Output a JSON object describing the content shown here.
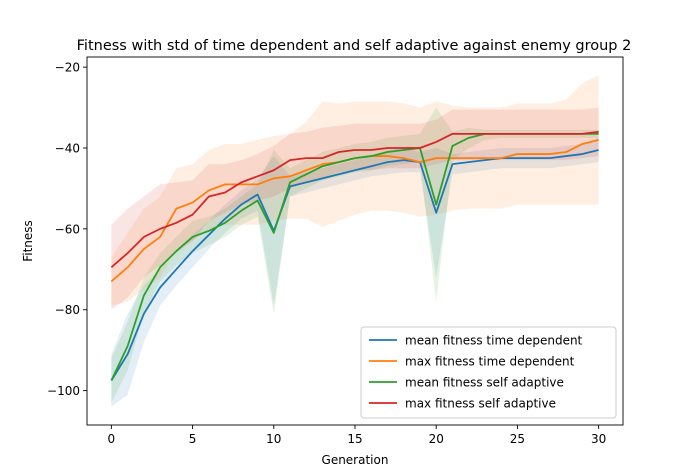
{
  "chart_data": {
    "type": "line",
    "title": "Fitness with std of time dependent and self adaptive against enemy group 2",
    "xlabel": "Generation",
    "ylabel": "Fitness",
    "xlim": [
      -1.5,
      31.5
    ],
    "ylim": [
      -108.5,
      -17.5
    ],
    "xticks": [
      0,
      5,
      10,
      15,
      20,
      25,
      30
    ],
    "yticks": [
      -100,
      -80,
      -60,
      -40,
      -20
    ],
    "x": [
      0,
      1,
      2,
      3,
      4,
      5,
      6,
      7,
      8,
      9,
      10,
      11,
      12,
      13,
      14,
      15,
      16,
      17,
      18,
      19,
      20,
      21,
      22,
      23,
      24,
      25,
      26,
      27,
      28,
      29,
      30
    ],
    "legend_position": "lower right",
    "series": [
      {
        "name": "mean fitness time dependent",
        "color": "#1f77b4",
        "values": [
          -97.5,
          -91,
          -81,
          -74.5,
          -70,
          -65.5,
          -61.5,
          -57.5,
          -54,
          -51.5,
          -60.5,
          -49.5,
          -48.5,
          -47.5,
          -46.5,
          -45.5,
          -44.5,
          -43.5,
          -43,
          -43.5,
          -56,
          -44,
          -43.5,
          -43,
          -42.5,
          -42.5,
          -42.5,
          -42.5,
          -42,
          -41.5,
          -40.5
        ],
        "std_low": [
          -104,
          -101,
          -88,
          -79,
          -74,
          -69.5,
          -65,
          -61,
          -57.5,
          -55.5,
          -79,
          -52,
          -51,
          -50,
          -49,
          -48,
          -47,
          -46.5,
          -46,
          -46,
          -72,
          -46.5,
          -46,
          -45.5,
          -45,
          -45,
          -45,
          -45,
          -44.5,
          -44,
          -43.5
        ],
        "std_high": [
          -91,
          -81,
          -74,
          -70,
          -66,
          -61.5,
          -58,
          -54,
          -50.5,
          -47.5,
          -42,
          -47,
          -46,
          -45,
          -44,
          -43,
          -42,
          -40.5,
          -40,
          -41,
          -40,
          -41.5,
          -41,
          -40.5,
          -40,
          -40,
          -40,
          -40,
          -39.5,
          -39,
          -37.5
        ]
      },
      {
        "name": "max fitness time dependent",
        "color": "#ff7f0e",
        "values": [
          -73,
          -69.5,
          -65,
          -62,
          -55,
          -53.5,
          -50.5,
          -49,
          -49,
          -49,
          -47.5,
          -47,
          -45.5,
          -44,
          -43.5,
          -42.5,
          -42,
          -42,
          -42.5,
          -43.5,
          -42.5,
          -42.5,
          -42.5,
          -42.5,
          -42.5,
          -41.5,
          -41.5,
          -41.5,
          -41,
          -39,
          -38
        ],
        "std_low": [
          -79,
          -78,
          -75,
          -72,
          -65,
          -63,
          -60,
          -59,
          -59,
          -59,
          -58,
          -57.5,
          -57.5,
          -59.5,
          -58,
          -56.5,
          -55.5,
          -55.5,
          -56,
          -57,
          -56.5,
          -55.5,
          -55,
          -55,
          -55,
          -54,
          -54,
          -54,
          -54,
          -54,
          -54
        ],
        "std_high": [
          -67,
          -61,
          -55,
          -52,
          -45,
          -44,
          -40.5,
          -39,
          -39,
          -38,
          -37,
          -36.5,
          -33.5,
          -28.5,
          -29,
          -28.5,
          -28.5,
          -28.5,
          -29,
          -30,
          -28.5,
          -29.5,
          -30,
          -30,
          -30,
          -29,
          -29,
          -29,
          -28,
          -24,
          -22
        ]
      },
      {
        "name": "mean fitness self adaptive",
        "color": "#2ca02c",
        "values": [
          -97.5,
          -89,
          -76.5,
          -69.5,
          -65.5,
          -62,
          -60.5,
          -58.5,
          -55.5,
          -53,
          -61,
          -48.5,
          -46.5,
          -44.5,
          -43.5,
          -42.5,
          -42,
          -41,
          -40.5,
          -40,
          -54,
          -39.5,
          -37.5,
          -36.5,
          -36.5,
          -36.5,
          -36.5,
          -36.5,
          -36.5,
          -36.5,
          -36.5
        ],
        "std_low": [
          -103,
          -95,
          -81,
          -73,
          -69,
          -66,
          -64,
          -62,
          -59,
          -57,
          -81,
          -52,
          -50,
          -48,
          -47,
          -46,
          -45.5,
          -44.5,
          -44,
          -43.5,
          -78,
          -43,
          -40,
          -38,
          -37.5,
          -37.5,
          -37.5,
          -37.5,
          -37.5,
          -37.5,
          -37.5
        ],
        "std_high": [
          -92,
          -83,
          -72,
          -66,
          -62,
          -58,
          -57,
          -55,
          -52,
          -49,
          -40.5,
          -45,
          -43,
          -41,
          -40,
          -39,
          -38.5,
          -37.5,
          -37,
          -36.5,
          -30,
          -36,
          -35,
          -35.5,
          -35.5,
          -35.5,
          -35.5,
          -35.5,
          -35.5,
          -35.5,
          -35.5
        ]
      },
      {
        "name": "max fitness self adaptive",
        "color": "#d62728",
        "values": [
          -69.5,
          -66,
          -62,
          -60,
          -58.5,
          -56.5,
          -52,
          -51,
          -48.5,
          -47,
          -45.5,
          -43,
          -42.5,
          -42.5,
          -41,
          -40.5,
          -40.5,
          -40,
          -40,
          -40,
          -38.5,
          -36.5,
          -36.5,
          -36.5,
          -36.5,
          -36.5,
          -36.5,
          -36.5,
          -36.5,
          -36.5,
          -36
        ],
        "std_low": [
          -80,
          -77,
          -72,
          -69,
          -66,
          -63,
          -58,
          -56,
          -54,
          -53,
          -52,
          -50,
          -48.5,
          -47.5,
          -46,
          -45.5,
          -45.5,
          -45,
          -45,
          -45,
          -44,
          -43,
          -43,
          -43,
          -43,
          -43,
          -43,
          -43,
          -43,
          -42.5,
          -42
        ],
        "std_high": [
          -59,
          -55,
          -52,
          -49,
          -48.5,
          -48,
          -44,
          -44,
          -43,
          -41.5,
          -39.5,
          -36.5,
          -36,
          -35,
          -34.5,
          -34,
          -34,
          -34,
          -34,
          -34,
          -33,
          -30.5,
          -30.5,
          -30.5,
          -30.5,
          -30.5,
          -30.5,
          -30.5,
          -30.5,
          -30.5,
          -30
        ]
      }
    ]
  }
}
